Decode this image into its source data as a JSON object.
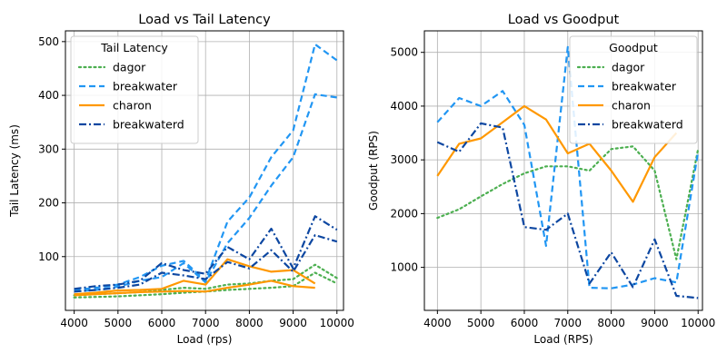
{
  "chart_data": [
    {
      "type": "line",
      "title": "Load vs Tail Latency",
      "xlabel": "Load (rps)",
      "ylabel": "Tail Latency (ms)",
      "xlim": [
        3800,
        10150
      ],
      "ylim": [
        0,
        520
      ],
      "xticks": [
        4000,
        5000,
        6000,
        7000,
        8000,
        9000,
        10000
      ],
      "yticks": [
        100,
        200,
        300,
        400,
        500
      ],
      "grid": true,
      "legend": {
        "title": "Tail Latency",
        "placement": "upper-left"
      },
      "series": [
        {
          "name": "dagor",
          "color": "#4caf50",
          "style": "dotted",
          "x": [
            4000,
            4500,
            5000,
            5500,
            6000,
            6500,
            7000,
            7500,
            8000,
            8500,
            9000,
            9500,
            10000
          ],
          "y": [
            28,
            30,
            32,
            34,
            38,
            42,
            40,
            48,
            50,
            55,
            58,
            85,
            60
          ]
        },
        {
          "name": "dagor",
          "color": "#4caf50",
          "style": "dotted",
          "legend": false,
          "x": [
            4000,
            4500,
            5000,
            5500,
            6000,
            6500,
            7000,
            7500,
            8000,
            8500,
            9000,
            9500,
            10000
          ],
          "y": [
            24,
            25,
            26,
            28,
            30,
            33,
            35,
            38,
            40,
            42,
            45,
            70,
            50
          ]
        },
        {
          "name": "breakwater",
          "color": "#2196f3",
          "style": "dashed",
          "x": [
            4000,
            4500,
            5000,
            5500,
            6000,
            6500,
            7000,
            7500,
            8000,
            8500,
            9000,
            9500,
            10000
          ],
          "y": [
            38,
            42,
            48,
            62,
            83,
            92,
            55,
            165,
            210,
            285,
            335,
            495,
            465
          ]
        },
        {
          "name": "breakwater",
          "color": "#2196f3",
          "style": "dashed",
          "legend": false,
          "x": [
            4000,
            4500,
            5000,
            5500,
            6000,
            6500,
            7000,
            7500,
            8000,
            8500,
            9000,
            9500,
            10000
          ],
          "y": [
            35,
            38,
            44,
            55,
            62,
            88,
            52,
            125,
            172,
            232,
            285,
            402,
            396
          ]
        },
        {
          "name": "charon",
          "color": "#ff9800",
          "style": "solid",
          "x": [
            4000,
            4500,
            5000,
            5500,
            6000,
            6500,
            7000,
            7500,
            8000,
            8500,
            9000,
            9500
          ],
          "y": [
            30,
            33,
            37,
            38,
            40,
            55,
            48,
            95,
            82,
            72,
            75,
            50
          ]
        },
        {
          "name": "charon",
          "color": "#ff9800",
          "style": "solid",
          "legend": false,
          "x": [
            4000,
            4500,
            5000,
            5500,
            6000,
            6500,
            7000,
            7500,
            8000,
            8500,
            9000,
            9500
          ],
          "y": [
            28,
            30,
            32,
            34,
            35,
            36,
            35,
            42,
            48,
            55,
            45,
            42
          ]
        },
        {
          "name": "breakwaterd",
          "color": "#0d47a1",
          "style": "dashdot",
          "x": [
            4000,
            4500,
            5000,
            5500,
            6000,
            6500,
            7000,
            7500,
            8000,
            8500,
            9000,
            9500,
            10000
          ],
          "y": [
            40,
            45,
            48,
            55,
            88,
            75,
            68,
            118,
            95,
            152,
            78,
            175,
            150
          ]
        },
        {
          "name": "breakwaterd",
          "color": "#0d47a1",
          "style": "dashdot",
          "legend": false,
          "x": [
            4000,
            4500,
            5000,
            5500,
            6000,
            6500,
            7000,
            7500,
            8000,
            8500,
            9000,
            9500,
            10000
          ],
          "y": [
            35,
            38,
            42,
            48,
            70,
            65,
            58,
            90,
            78,
            112,
            72,
            140,
            128
          ]
        }
      ]
    },
    {
      "type": "line",
      "title": "Load vs Goodput",
      "xlabel": "Load (RPS)",
      "ylabel": "Goodput (RPS)",
      "xlim": [
        3700,
        10100
      ],
      "ylim": [
        200,
        5400
      ],
      "xticks": [
        4000,
        5000,
        6000,
        7000,
        8000,
        9000,
        10000
      ],
      "yticks": [
        1000,
        2000,
        3000,
        4000,
        5000
      ],
      "grid": true,
      "legend": {
        "title": "Goodput",
        "placement": "upper-right"
      },
      "series": [
        {
          "name": "dagor",
          "color": "#4caf50",
          "style": "dotted",
          "x": [
            4000,
            4500,
            5000,
            5500,
            6000,
            6500,
            7000,
            7500,
            8000,
            8500,
            9000,
            9500,
            10000
          ],
          "y": [
            1920,
            2080,
            2320,
            2550,
            2750,
            2880,
            2880,
            2800,
            3200,
            3250,
            2800,
            1150,
            3200
          ]
        },
        {
          "name": "breakwater",
          "color": "#2196f3",
          "style": "dashed",
          "x": [
            4000,
            4500,
            5000,
            5500,
            6000,
            6500,
            7000,
            7500,
            8000,
            8500,
            9000,
            9500,
            10000
          ],
          "y": [
            3700,
            4150,
            4000,
            4280,
            3650,
            1400,
            5100,
            620,
            610,
            680,
            800,
            720,
            3150
          ]
        },
        {
          "name": "charon",
          "color": "#ff9800",
          "style": "solid",
          "x": [
            4000,
            4500,
            5000,
            5500,
            6000,
            6500,
            7000,
            7500,
            8000,
            8500,
            9000,
            9500
          ],
          "y": [
            2700,
            3300,
            3400,
            3700,
            4000,
            3750,
            3120,
            3300,
            2800,
            2220,
            3050,
            3500
          ]
        },
        {
          "name": "breakwaterd",
          "color": "#0d47a1",
          "style": "dashdot",
          "x": [
            4000,
            4500,
            5000,
            5500,
            6000,
            6500,
            7000,
            7500,
            8000,
            8500,
            9000,
            9500,
            10000
          ],
          "y": [
            3330,
            3150,
            3680,
            3600,
            1750,
            1700,
            2000,
            700,
            1280,
            630,
            1520,
            470,
            430
          ]
        }
      ]
    }
  ]
}
